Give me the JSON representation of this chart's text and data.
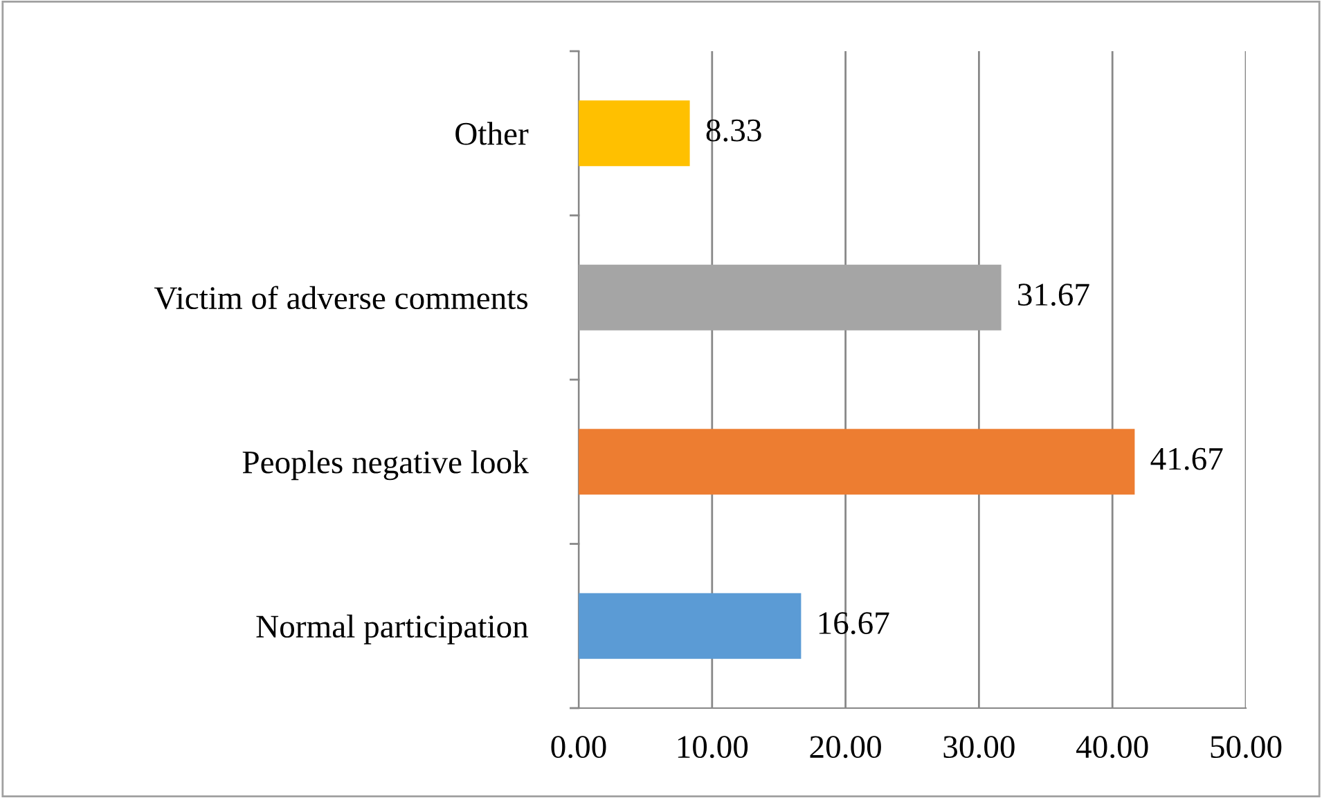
{
  "chart_data": {
    "type": "bar",
    "orientation": "horizontal",
    "categories": [
      "Other",
      "Victim of adverse comments",
      "Peoples negative look",
      "Normal participation"
    ],
    "values": [
      8.33,
      31.67,
      41.67,
      16.67
    ],
    "colors": [
      "#ffc000",
      "#a5a5a5",
      "#ed7d31",
      "#5b9bd5"
    ],
    "xlim": [
      0,
      50
    ],
    "xticks": [
      {
        "value": 0,
        "label": "0.00"
      },
      {
        "value": 10,
        "label": "10.00"
      },
      {
        "value": 20,
        "label": "20.00"
      },
      {
        "value": 30,
        "label": "30.00"
      },
      {
        "value": 40,
        "label": "40.00"
      },
      {
        "value": 50,
        "label": "50.00"
      }
    ],
    "grid": "x",
    "data_labels": true,
    "legend": false
  }
}
